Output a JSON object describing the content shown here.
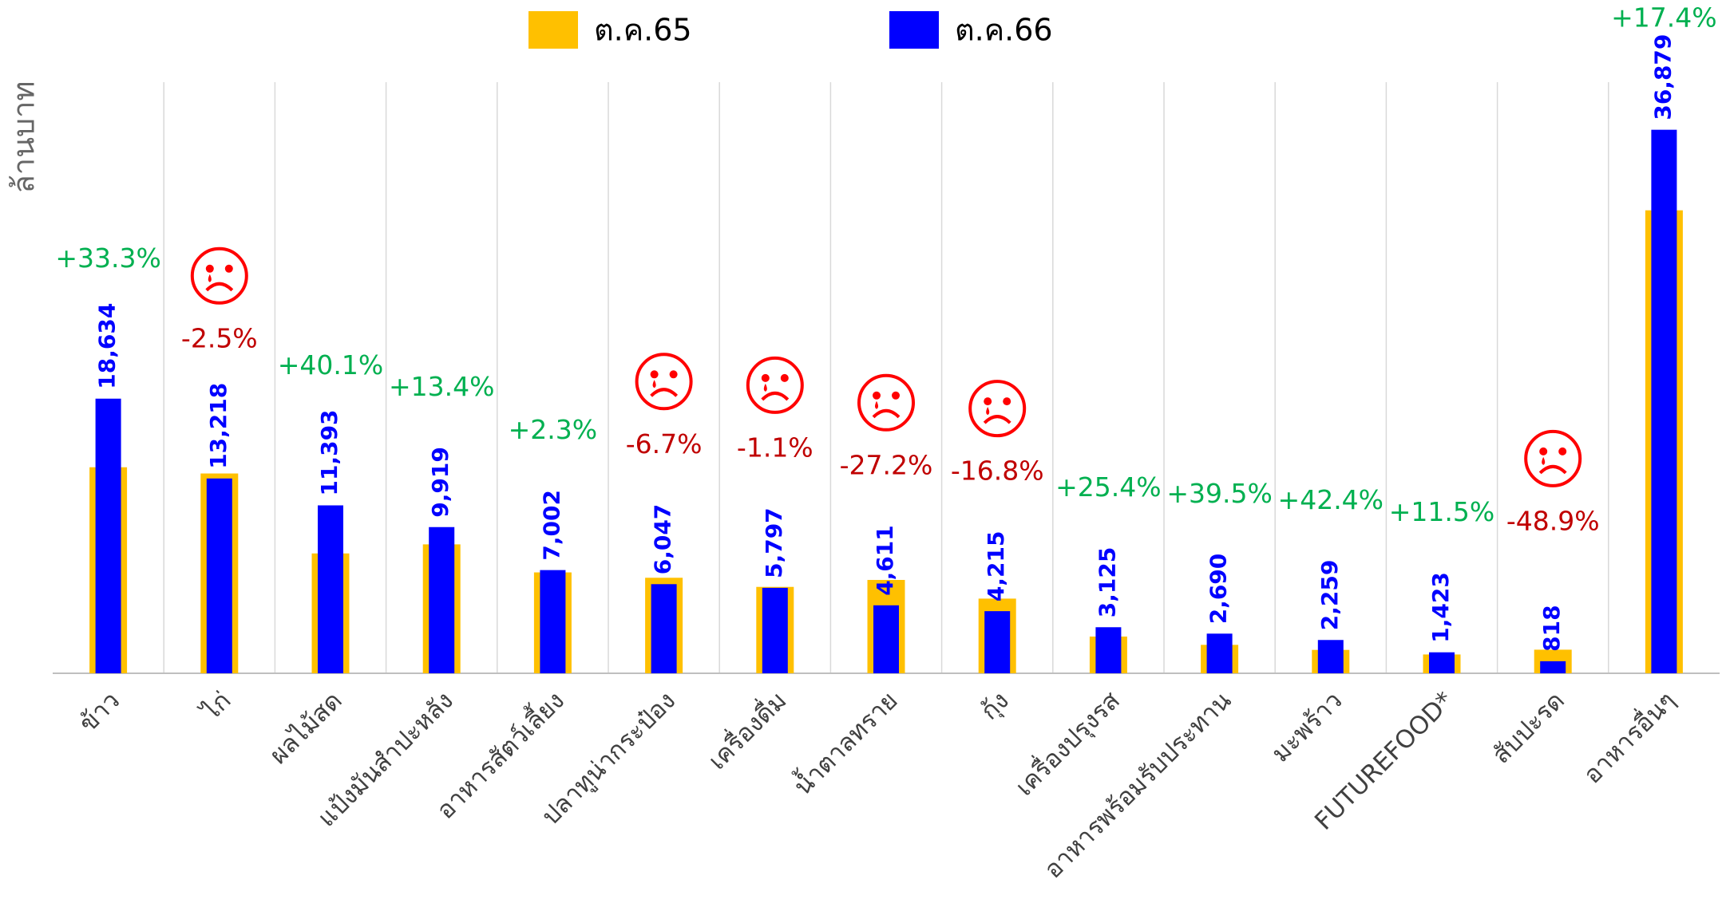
{
  "chart_data": {
    "type": "bar",
    "y_label": "ล้านบาท",
    "categories": [
      "ข้าว",
      "ไก่",
      "ผลไม้สด",
      "แป้งมันสำปะหลัง",
      "อาหารสัตว์เลี้ยง",
      "ปลาทูน่ากระป๋อง",
      "เครื่องดื่ม",
      "น้ำตาลทราย",
      "กุ้ง",
      "เครื่องปรุงรส",
      "อาหารพร้อมรับประทาน",
      "มะพร้าว",
      "FUTUREFOOD*",
      "สับปะรด",
      "อาหารอื่นๆ"
    ],
    "series": [
      {
        "name": "ต.ค.65",
        "color": "#ffc000",
        "values": [
          13979,
          13557,
          8132,
          8747,
          6845,
          6481,
          5861,
          6334,
          5066,
          2492,
          1928,
          1586,
          1276,
          1601,
          31413
        ]
      },
      {
        "name": "ต.ค.66",
        "color": "#0000ff",
        "values": [
          18634,
          13218,
          11393,
          9919,
          7002,
          6047,
          5797,
          4611,
          4215,
          3125,
          2690,
          2259,
          1423,
          818,
          36879
        ],
        "value_labels": [
          "18,634",
          "13,218",
          "11,393",
          "9,919",
          "7,002",
          "6,047",
          "5,797",
          "4,611",
          "4,215",
          "3,125",
          "2,690",
          "2,259",
          "1,423",
          "818",
          "36,879"
        ]
      }
    ],
    "annotations": [
      "+33.3%",
      "-2.5%",
      "+40.1%",
      "+13.4%",
      "+2.3%",
      "-6.7%",
      "-1.1%",
      "-27.2%",
      "-16.8%",
      "+25.4%",
      "+39.5%",
      "+42.4%",
      "+11.5%",
      "-48.9%",
      "+17.4%"
    ],
    "ylim": [
      0,
      40000
    ],
    "grid": true
  }
}
